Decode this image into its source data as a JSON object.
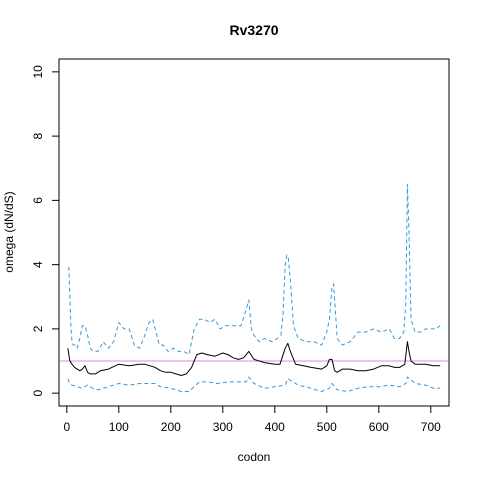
{
  "chart_data": {
    "type": "line",
    "title": "Rv3270",
    "xlabel": "codon",
    "ylabel": "omega (dN/dS)",
    "xlim": [
      -15,
      735
    ],
    "ylim": [
      -0.4,
      10.4
    ],
    "xticks": [
      0,
      100,
      200,
      300,
      400,
      500,
      600,
      700
    ],
    "yticks": [
      0,
      2,
      4,
      6,
      8,
      10
    ],
    "grid": false,
    "reference_line": {
      "y": 1.0,
      "color": "#dd88dd"
    },
    "series": [
      {
        "role": "upper",
        "style": "dashed",
        "color": "#3399dd",
        "x": [
          2,
          4,
          6,
          8,
          10,
          12,
          16,
          20,
          25,
          30,
          35,
          40,
          45,
          50,
          55,
          60,
          70,
          80,
          90,
          100,
          110,
          120,
          130,
          140,
          150,
          158,
          165,
          170,
          178,
          185,
          195,
          205,
          215,
          225,
          235,
          245,
          255,
          265,
          275,
          285,
          295,
          305,
          320,
          335,
          345,
          350,
          355,
          360,
          370,
          380,
          395,
          405,
          412,
          416,
          420,
          423,
          426,
          430,
          436,
          445,
          460,
          475,
          490,
          500,
          505,
          510,
          513,
          516,
          520,
          530,
          545,
          560,
          575,
          590,
          605,
          620,
          630,
          640,
          648,
          652,
          655,
          658,
          662,
          670,
          680,
          690,
          700,
          710,
          718
        ],
        "y": [
          3.9,
          3.9,
          3.0,
          2.0,
          1.6,
          1.5,
          1.5,
          1.4,
          1.7,
          2.1,
          2.1,
          1.8,
          1.4,
          1.3,
          1.3,
          1.3,
          1.6,
          1.4,
          1.6,
          2.2,
          2.0,
          2.0,
          1.5,
          1.4,
          1.8,
          2.2,
          2.3,
          2.0,
          1.5,
          1.5,
          1.3,
          1.4,
          1.3,
          1.3,
          1.2,
          2.0,
          2.3,
          2.3,
          2.2,
          2.3,
          2.0,
          2.1,
          2.1,
          2.1,
          2.6,
          2.9,
          2.0,
          1.8,
          1.6,
          1.7,
          1.6,
          1.7,
          1.8,
          2.5,
          4.0,
          4.3,
          4.2,
          3.5,
          2.1,
          1.7,
          1.6,
          1.6,
          1.5,
          1.9,
          2.3,
          3.3,
          3.4,
          2.7,
          1.7,
          1.5,
          1.6,
          1.9,
          1.9,
          2.0,
          1.9,
          2.0,
          1.7,
          1.7,
          1.9,
          2.8,
          6.5,
          5.0,
          2.3,
          1.9,
          1.9,
          2.0,
          2.0,
          2.0,
          2.1
        ]
      },
      {
        "role": "estimate",
        "style": "solid",
        "color": "#000000",
        "x": [
          2,
          6,
          10,
          15,
          20,
          25,
          30,
          35,
          40,
          45,
          55,
          65,
          80,
          100,
          120,
          140,
          150,
          160,
          170,
          180,
          190,
          200,
          210,
          220,
          230,
          240,
          250,
          260,
          270,
          285,
          300,
          310,
          320,
          330,
          340,
          350,
          360,
          380,
          400,
          410,
          420,
          425,
          430,
          440,
          455,
          470,
          490,
          500,
          505,
          510,
          515,
          520,
          530,
          545,
          560,
          575,
          590,
          605,
          620,
          630,
          640,
          650,
          655,
          658,
          662,
          670,
          690,
          705,
          718
        ],
        "y": [
          1.4,
          1.0,
          0.9,
          0.8,
          0.75,
          0.7,
          0.75,
          0.85,
          0.65,
          0.6,
          0.6,
          0.7,
          0.75,
          0.9,
          0.85,
          0.9,
          0.9,
          0.85,
          0.8,
          0.7,
          0.65,
          0.65,
          0.6,
          0.55,
          0.6,
          0.8,
          1.2,
          1.25,
          1.2,
          1.15,
          1.25,
          1.2,
          1.1,
          1.05,
          1.1,
          1.3,
          1.05,
          0.95,
          0.9,
          0.9,
          1.4,
          1.55,
          1.3,
          0.9,
          0.85,
          0.8,
          0.75,
          0.85,
          1.05,
          1.05,
          0.7,
          0.65,
          0.75,
          0.75,
          0.7,
          0.7,
          0.75,
          0.85,
          0.85,
          0.8,
          0.8,
          0.9,
          1.6,
          1.3,
          1.0,
          0.9,
          0.9,
          0.85,
          0.85
        ]
      },
      {
        "role": "lower",
        "style": "dashed",
        "color": "#3399dd",
        "x": [
          2,
          6,
          10,
          20,
          30,
          40,
          50,
          60,
          80,
          100,
          120,
          140,
          160,
          170,
          180,
          200,
          220,
          235,
          245,
          255,
          270,
          290,
          310,
          330,
          345,
          350,
          360,
          380,
          400,
          420,
          425,
          430,
          445,
          470,
          490,
          505,
          510,
          515,
          520,
          540,
          560,
          580,
          600,
          620,
          640,
          652,
          655,
          660,
          670,
          690,
          705,
          718
        ],
        "y": [
          0.45,
          0.3,
          0.25,
          0.2,
          0.15,
          0.25,
          0.15,
          0.1,
          0.2,
          0.3,
          0.25,
          0.3,
          0.3,
          0.3,
          0.2,
          0.15,
          0.05,
          0.05,
          0.2,
          0.35,
          0.35,
          0.3,
          0.35,
          0.35,
          0.35,
          0.5,
          0.3,
          0.15,
          0.2,
          0.25,
          0.45,
          0.4,
          0.25,
          0.15,
          0.05,
          0.15,
          0.3,
          0.2,
          0.1,
          0.05,
          0.15,
          0.2,
          0.2,
          0.25,
          0.2,
          0.3,
          0.5,
          0.45,
          0.3,
          0.25,
          0.15,
          0.15
        ]
      }
    ]
  }
}
